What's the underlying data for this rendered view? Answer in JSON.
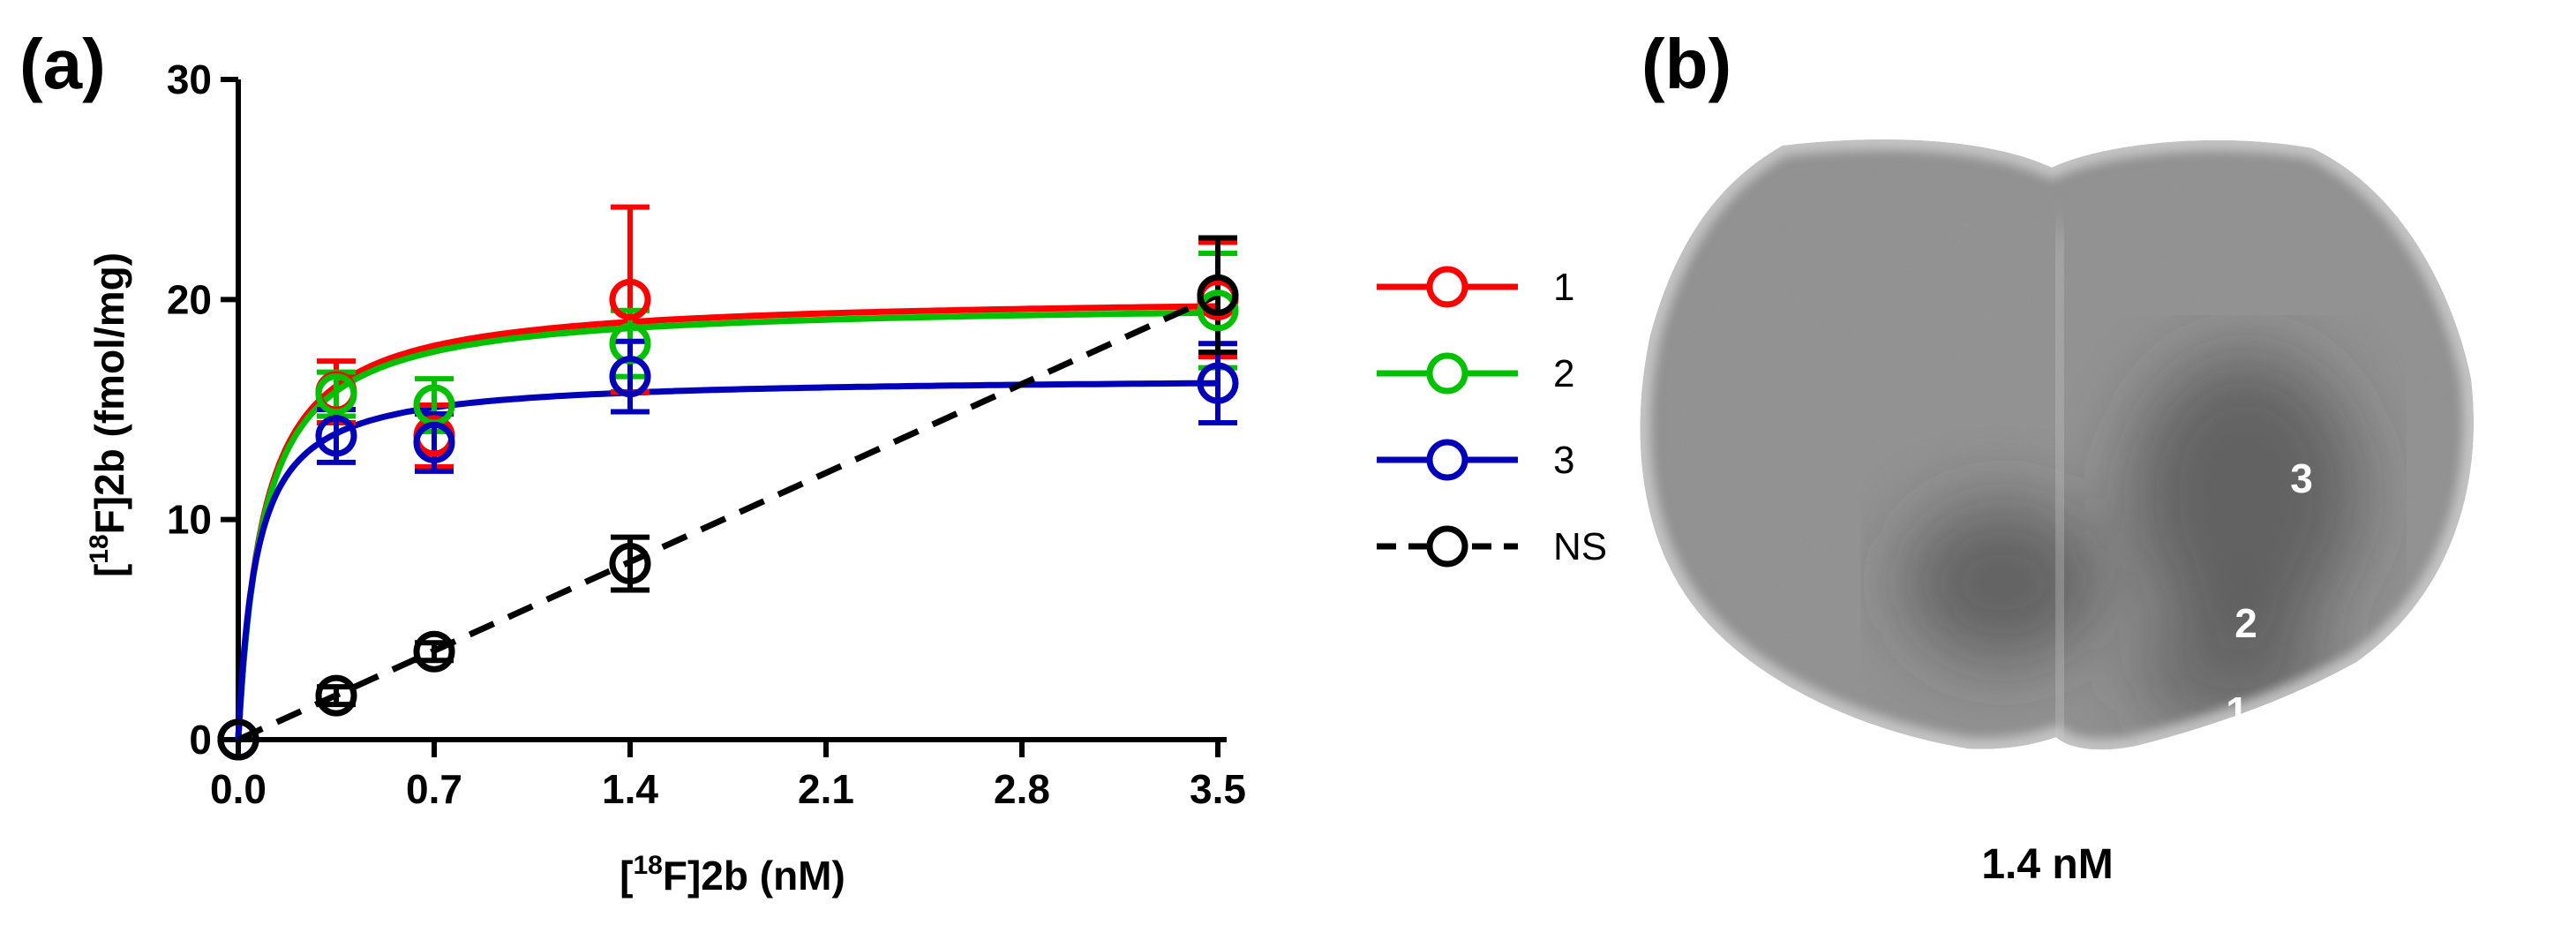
{
  "panel_a": {
    "label": "(a)"
  },
  "panel_b": {
    "label": "(b)",
    "region_labels": [
      "1",
      "2",
      "3"
    ],
    "caption": "1.4 nM"
  },
  "chart_data": {
    "type": "line",
    "title": "",
    "xlabel_prefix": "[",
    "xlabel_sup": "18",
    "xlabel_suffix": "F]2b (nM)",
    "ylabel_prefix": "[",
    "ylabel_sup": "18",
    "ylabel_suffix": "F]2b (fmol/mg)",
    "xlim": [
      0,
      3.5
    ],
    "ylim": [
      0,
      30
    ],
    "xticks": [
      "0.0",
      "0.7",
      "1.4",
      "2.1",
      "2.8",
      "3.5"
    ],
    "xtick_values": [
      0,
      0.7,
      1.4,
      2.1,
      2.8,
      3.5
    ],
    "yticks": [
      "0",
      "10",
      "20",
      "30"
    ],
    "ytick_values": [
      0,
      10,
      20,
      30
    ],
    "x": [
      0,
      0.35,
      0.7,
      1.4,
      3.5
    ],
    "series": [
      {
        "name": "1",
        "color": "#ff0000",
        "values": [
          0,
          15.8,
          13.8,
          20.0,
          20.0
        ],
        "errors": [
          0,
          1.4,
          1.4,
          4.2,
          2.6
        ],
        "fit": "hyperbola",
        "bmax": 20.2,
        "kd": 0.09
      },
      {
        "name": "2",
        "color": "#00c000",
        "values": [
          0,
          15.7,
          15.2,
          18.0,
          19.5
        ],
        "errors": [
          0,
          1.0,
          1.2,
          1.5,
          2.6
        ],
        "fit": "hyperbola",
        "bmax": 19.9,
        "kd": 0.09
      },
      {
        "name": "3",
        "color": "#0000b8",
        "values": [
          0,
          13.8,
          13.5,
          16.5,
          16.2
        ],
        "errors": [
          0,
          1.2,
          1.3,
          1.6,
          1.8
        ],
        "fit": "hyperbola",
        "bmax": 16.5,
        "kd": 0.065
      },
      {
        "name": "NS",
        "color": "#000000",
        "values": [
          0,
          2.0,
          4.0,
          8.0,
          20.2
        ],
        "errors": [
          0,
          0.4,
          0.4,
          1.2,
          2.6
        ],
        "fit": "linear",
        "dashed": true
      }
    ],
    "legend_position": "right"
  }
}
